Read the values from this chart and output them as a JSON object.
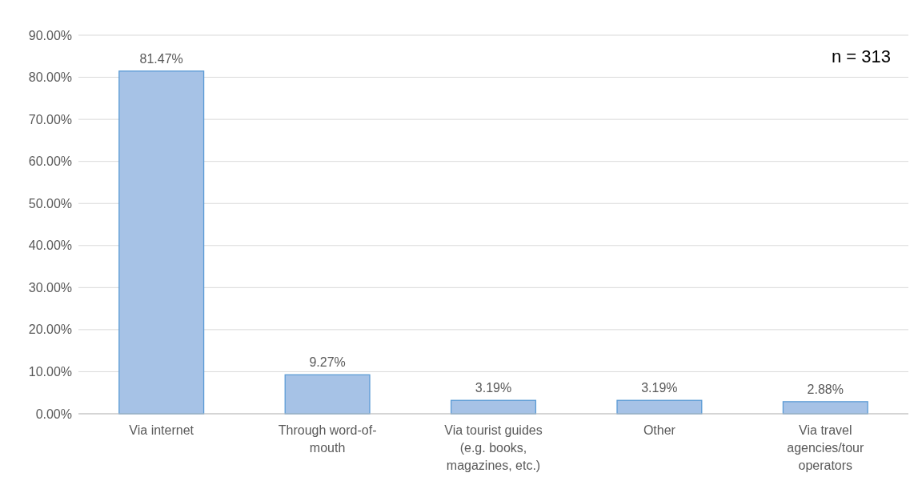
{
  "chart_data": {
    "type": "bar",
    "categories": [
      "Via internet",
      "Through word-of-mouth",
      "Via tourist guides (e.g. books, magazines, etc.)",
      "Other",
      "Via travel agencies/tour operators"
    ],
    "values": [
      81.47,
      9.27,
      3.19,
      3.19,
      2.88
    ],
    "value_labels": [
      "81.47%",
      "9.27%",
      "3.19%",
      "3.19%",
      "2.88%"
    ],
    "color": "#a6c2e6",
    "ylim": [
      0,
      90
    ],
    "yticks": [
      {
        "value": 0,
        "label": "0.00%"
      },
      {
        "value": 10,
        "label": "10.00%"
      },
      {
        "value": 20,
        "label": "20.00%"
      },
      {
        "value": 30,
        "label": "30.00%"
      },
      {
        "value": 40,
        "label": "40.00%"
      },
      {
        "value": 50,
        "label": "50.00%"
      },
      {
        "value": 60,
        "label": "60.00%"
      },
      {
        "value": 70,
        "label": "70.00%"
      },
      {
        "value": 80,
        "label": "80.00%"
      },
      {
        "value": 90,
        "label": "90.00%"
      }
    ],
    "grid": "y",
    "annotations": [
      "n = 313"
    ]
  }
}
